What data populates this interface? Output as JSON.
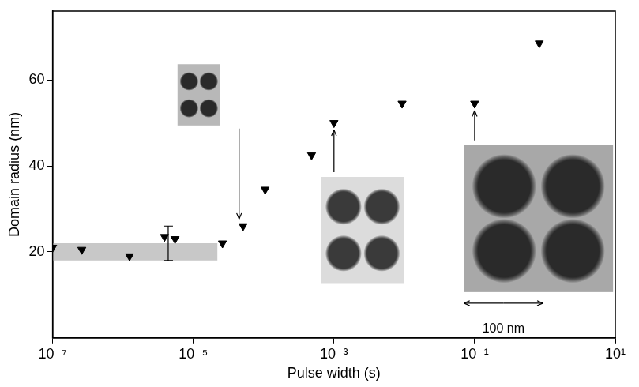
{
  "chart_data": {
    "type": "scatter",
    "x_label": "Pulse width (s)",
    "y_label": "Domain radius (nm)",
    "log": "x",
    "grid": false,
    "marker": "triangle_down",
    "color": "#000000",
    "x": [
      1e-07,
      2.6e-07,
      1.24e-06,
      3.9e-06,
      5.5e-06,
      2.6e-05,
      5.1e-05,
      0.000105,
      0.00048,
      0.001,
      0.0093,
      0.1,
      0.83
    ],
    "values": [
      21,
      20.5,
      19,
      23.5,
      23,
      22,
      26,
      34.5,
      42.5,
      50,
      54.5,
      54.5,
      68.5
    ],
    "xlim": [
      1e-07,
      10
    ],
    "xticks": [
      {
        "value": 1e-07,
        "label": "10⁻⁷"
      },
      {
        "value": 1e-05,
        "label": "10⁻⁵"
      },
      {
        "value": 0.001,
        "label": "10⁻³"
      },
      {
        "value": 0.1,
        "label": "10⁻¹"
      },
      {
        "value": 10,
        "label": "10¹"
      }
    ],
    "ylim": [
      0,
      76
    ],
    "yticks": [
      20,
      40,
      60
    ],
    "error_bars": [
      {
        "x": 4.4e-06,
        "low": 18,
        "high": 26
      }
    ],
    "shaded_band": {
      "x": [
        1e-07,
        2.2e-05
      ],
      "y": [
        18,
        22
      ],
      "color": "#c8c8c8"
    },
    "annotations": [
      {
        "text": "100 nm"
      }
    ]
  }
}
